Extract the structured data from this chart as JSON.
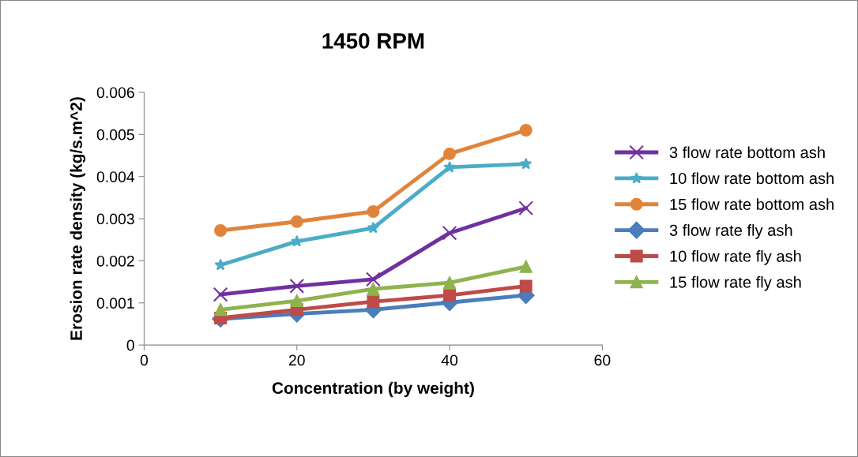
{
  "chart_data": {
    "type": "line",
    "title": "1450 RPM",
    "xlabel": "Concentration (by weight)",
    "ylabel": "Erosion rate density (kg/s.m^2)",
    "x": [
      10,
      20,
      30,
      40,
      50
    ],
    "xlim": [
      0,
      60
    ],
    "xticks": [
      0,
      20,
      40,
      60
    ],
    "ylim": [
      0,
      0.006
    ],
    "yticks": [
      {
        "value": 0,
        "label": "0"
      },
      {
        "value": 0.001,
        "label": "0.001"
      },
      {
        "value": 0.002,
        "label": "0.002"
      },
      {
        "value": 0.003,
        "label": "0.003"
      },
      {
        "value": 0.004,
        "label": "0.004"
      },
      {
        "value": 0.005,
        "label": "0.005"
      },
      {
        "value": 0.006,
        "label": "0.006"
      }
    ],
    "grid": false,
    "legend": "right",
    "line_style": "solid",
    "series": [
      {
        "name": "3 flow rate bottom ash",
        "color": "#7030a0",
        "marker": "cross",
        "values": [
          0.0012,
          0.0014,
          0.00156,
          0.00266,
          0.00325
        ]
      },
      {
        "name": "10 flow rate bottom ash",
        "color": "#4bacc6",
        "marker": "star",
        "values": [
          0.0019,
          0.00246,
          0.00278,
          0.00422,
          0.0043
        ]
      },
      {
        "name": "15 flow rate bottom ash",
        "color": "#e0843c",
        "marker": "circle",
        "values": [
          0.00272,
          0.00293,
          0.00317,
          0.00454,
          0.0051
        ]
      },
      {
        "name": "3 flow rate fly ash",
        "color": "#4a7ebb",
        "marker": "diamond",
        "values": [
          0.00062,
          0.00074,
          0.00084,
          0.00101,
          0.00118
        ]
      },
      {
        "name": "10 flow rate fly ash",
        "color": "#be4b48",
        "marker": "square",
        "values": [
          0.00064,
          0.00084,
          0.00103,
          0.00118,
          0.0014
        ]
      },
      {
        "name": "15 flow rate fly ash",
        "color": "#8fb34d",
        "marker": "triangle",
        "values": [
          0.00084,
          0.00105,
          0.00133,
          0.00148,
          0.00186
        ]
      }
    ]
  }
}
